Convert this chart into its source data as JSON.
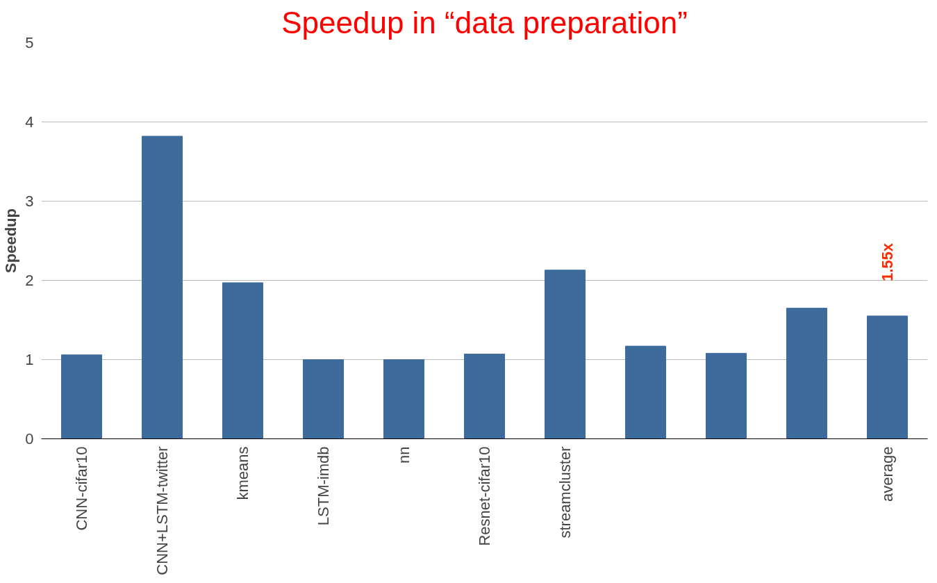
{
  "chart_data": {
    "type": "bar",
    "title": "Speedup in “data preparation”",
    "ylabel": "Speedup",
    "categories": [
      "CNN-cifar10",
      "CNN+LSTM-twitter",
      "kmeans",
      "LSTM-imdb",
      "nn",
      "Resnet-cifar10",
      "streamcluster",
      null,
      null,
      null,
      "average"
    ],
    "values": [
      1.06,
      3.82,
      1.97,
      1.0,
      1.0,
      1.07,
      2.13,
      1.17,
      1.08,
      1.65,
      1.55
    ],
    "color": "#3c6b9c",
    "ylim": [
      0,
      5
    ],
    "yticks": [
      0,
      1,
      2,
      3,
      4,
      5
    ],
    "grid": "y",
    "annotations": [
      {
        "text": "1.55x",
        "x": "average",
        "y": 1.55
      }
    ]
  }
}
